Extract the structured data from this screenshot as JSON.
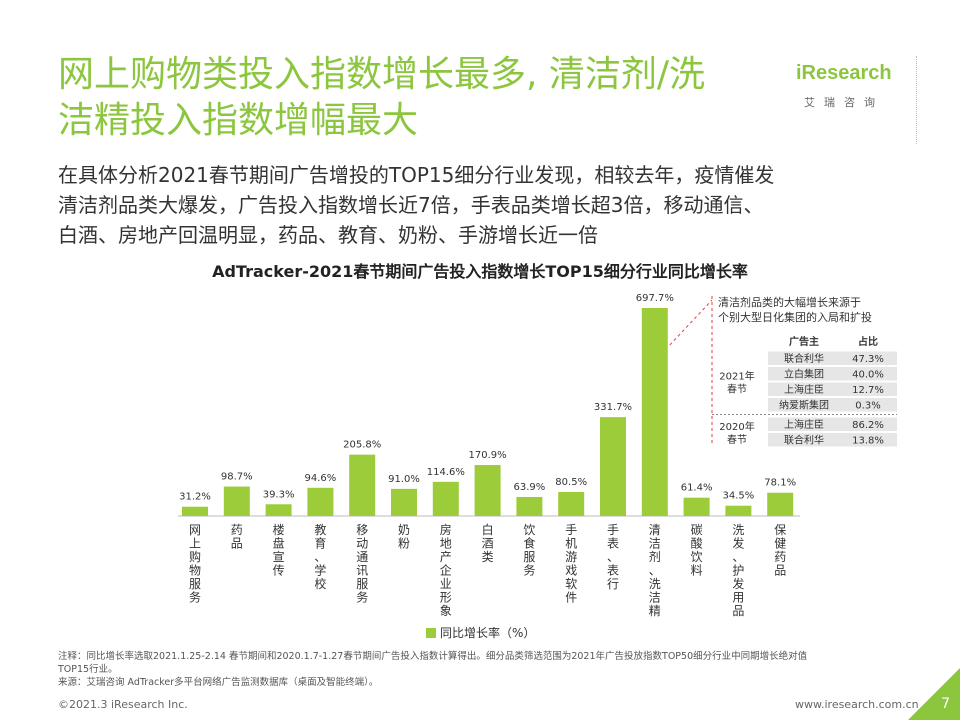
{
  "header": {
    "title_line1": "网上购物类投入指数增长最多, 清洁剂/洗",
    "title_line2": "洁精投入指数增幅最大",
    "subtitle_lines": [
      "在具体分析2021春节期间广告增投的TOP15细分行业发现，相较去年，疫情催发",
      "清洁剂品类大爆发，广告投入指数增长近7倍，手表品类增长超3倍，移动通信、",
      "白酒、房地产回温明显，药品、教育、奶粉、手游增长近一倍"
    ]
  },
  "logo": {
    "brand": "iResearch",
    "sub": "艾瑞咨询"
  },
  "colors": {
    "accent": "#8cc63f",
    "bar": "#9dcc3a",
    "table_bg": "#e6e6e6"
  },
  "chart_data": {
    "type": "bar",
    "title": "AdTracker-2021春节期间广告投入指数增长TOP15细分行业同比增长率",
    "categories": [
      "网上购物服务",
      "药品",
      "楼盘宣传",
      "教育学校",
      "移动通讯服务",
      "奶粉",
      "房地产企业形象",
      "白酒类",
      "饮食服务",
      "手机游戏软件",
      "手表表行",
      "清洁剂洗洁精",
      "碳酸饮料",
      "洗发护发用品",
      "保健药品"
    ],
    "category_labels": [
      [
        "网",
        "上",
        "购",
        "物",
        "服",
        "务"
      ],
      [
        "药",
        "品"
      ],
      [
        "楼",
        "盘",
        "宣",
        "传"
      ],
      [
        "教",
        "育",
        "、",
        "学",
        "校"
      ],
      [
        "移",
        "动",
        "通",
        "讯",
        "服",
        "务"
      ],
      [
        "奶",
        "粉"
      ],
      [
        "房",
        "地",
        "产",
        "企",
        "业",
        "形",
        "象"
      ],
      [
        "白",
        "酒",
        "类"
      ],
      [
        "饮",
        "食",
        "服",
        "务"
      ],
      [
        "手",
        "机",
        "游",
        "戏",
        "软",
        "件"
      ],
      [
        "手",
        "表",
        "、",
        "表",
        "行"
      ],
      [
        "清",
        "洁",
        "剂",
        "、",
        "洗",
        "洁",
        "精"
      ],
      [
        "碳",
        "酸",
        "饮",
        "料"
      ],
      [
        "洗",
        "发",
        "、",
        "护",
        "发",
        "用",
        "品"
      ],
      [
        "保",
        "健",
        "药",
        "品"
      ]
    ],
    "values": [
      31.2,
      98.7,
      39.3,
      94.6,
      205.8,
      91.0,
      114.6,
      170.9,
      63.9,
      80.5,
      331.7,
      697.7,
      61.4,
      34.5,
      78.1
    ],
    "value_labels": [
      "31.2%",
      "98.7%",
      "39.3%",
      "94.6%",
      "205.8%",
      "91.0%",
      "114.6%",
      "170.9%",
      "63.9%",
      "80.5%",
      "331.7%",
      "697.7%",
      "61.4%",
      "34.5%",
      "78.1%"
    ],
    "legend": "同比增长率（%）",
    "ylim": [
      0,
      697.7
    ],
    "annotation": {
      "lines": [
        "清洁剂品类的大幅增长来源于",
        "个别大型日化集团的入局和扩投"
      ],
      "table_headers": [
        "广告主",
        "占比"
      ],
      "groups": [
        {
          "label_lines": [
            "2021年",
            "春节"
          ],
          "rows": [
            [
              "联合利华",
              "47.3%"
            ],
            [
              "立白集团",
              "40.0%"
            ],
            [
              "上海庄臣",
              "12.7%"
            ],
            [
              "纳爱斯集团",
              "0.3%"
            ]
          ]
        },
        {
          "label_lines": [
            "2020年",
            "春节"
          ],
          "rows": [
            [
              "上海庄臣",
              "86.2%"
            ],
            [
              "联合利华",
              "13.8%"
            ]
          ]
        }
      ]
    }
  },
  "notes": [
    "注释：同比增长率选取2021.1.25-2.14 春节期间和2020.1.7-1.27春节期间广告投入指数计算得出。细分品类筛选范围为2021年广告投放指数TOP50细分行业中同期增长绝对值",
    "TOP15行业。",
    "来源：艾瑞咨询 AdTracker多平台网络广告监测数据库（桌面及智能终端）。"
  ],
  "footer": {
    "copyright": "©2021.3 iResearch Inc.",
    "website": "www.iresearch.com.cn",
    "page": "7"
  }
}
